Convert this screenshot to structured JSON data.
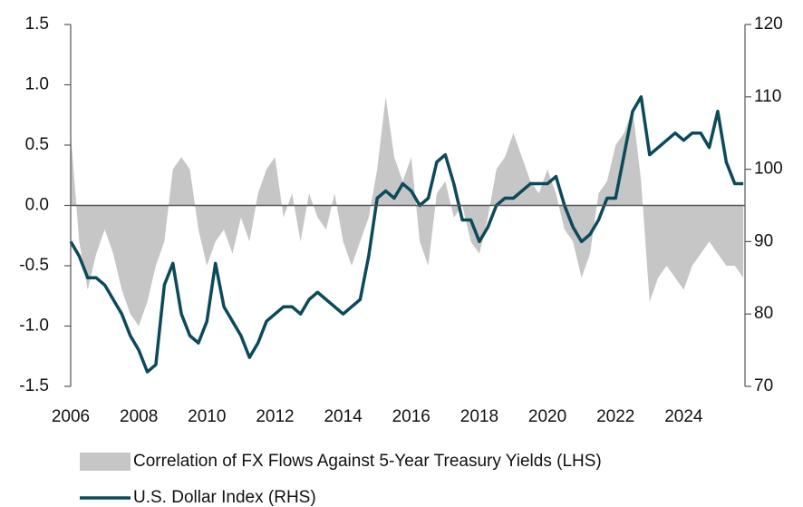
{
  "chart_data": {
    "type": "area_line",
    "x": [
      2006,
      2006.25,
      2006.5,
      2006.75,
      2007,
      2007.25,
      2007.5,
      2007.75,
      2008,
      2008.25,
      2008.5,
      2008.75,
      2009,
      2009.25,
      2009.5,
      2009.75,
      2010,
      2010.25,
      2010.5,
      2010.75,
      2011,
      2011.25,
      2011.5,
      2011.75,
      2012,
      2012.25,
      2012.5,
      2012.75,
      2013,
      2013.25,
      2013.5,
      2013.75,
      2014,
      2014.25,
      2014.5,
      2014.75,
      2015,
      2015.25,
      2015.5,
      2015.75,
      2016,
      2016.25,
      2016.5,
      2016.75,
      2017,
      2017.25,
      2017.5,
      2017.75,
      2018,
      2018.25,
      2018.5,
      2018.75,
      2019,
      2019.25,
      2019.5,
      2019.75,
      2020,
      2020.25,
      2020.5,
      2020.75,
      2021,
      2021.25,
      2021.5,
      2021.75,
      2022,
      2022.25,
      2022.5,
      2022.75,
      2023,
      2023.25,
      2023.5,
      2023.75,
      2024,
      2024.25,
      2024.5,
      2024.75,
      2025,
      2025.25,
      2025.5,
      2025.75
    ],
    "series": [
      {
        "name": "Correlation of FX Flows Against 5-Year Treasury Yields (LHS)",
        "color": "#c6c6c6",
        "kind": "area",
        "axis": "y",
        "values": [
          0.6,
          -0.3,
          -0.7,
          -0.4,
          -0.2,
          -0.4,
          -0.7,
          -0.9,
          -1.0,
          -0.8,
          -0.5,
          -0.3,
          0.3,
          0.4,
          0.3,
          -0.2,
          -0.5,
          -0.3,
          -0.2,
          -0.4,
          -0.1,
          -0.3,
          0.1,
          0.3,
          0.4,
          -0.1,
          0.1,
          -0.3,
          0.1,
          -0.1,
          -0.2,
          0.1,
          -0.3,
          -0.5,
          -0.3,
          -0.1,
          0.3,
          0.9,
          0.4,
          0.2,
          0.4,
          -0.3,
          -0.5,
          0.1,
          0.2,
          -0.1,
          0.0,
          -0.3,
          -0.4,
          -0.1,
          0.3,
          0.4,
          0.6,
          0.4,
          0.2,
          0.1,
          0.3,
          0.1,
          -0.2,
          -0.3,
          -0.6,
          -0.4,
          0.1,
          0.2,
          0.5,
          0.6,
          0.8,
          0.2,
          -0.8,
          -0.6,
          -0.5,
          -0.6,
          -0.7,
          -0.5,
          -0.4,
          -0.3,
          -0.4,
          -0.5,
          -0.5,
          -0.6
        ]
      },
      {
        "name": "U.S. Dollar Index (RHS)",
        "color": "#0b4a5a",
        "kind": "line",
        "axis": "y2",
        "values": [
          90,
          88,
          85,
          85,
          84,
          82,
          80,
          77,
          75,
          72,
          73,
          84,
          87,
          80,
          77,
          76,
          79,
          87,
          81,
          79,
          77,
          74,
          76,
          79,
          80,
          81,
          81,
          80,
          82,
          83,
          82,
          81,
          80,
          81,
          82,
          88,
          96,
          97,
          96,
          98,
          97,
          95,
          96,
          101,
          102,
          98,
          93,
          93,
          90,
          92,
          95,
          96,
          96,
          97,
          98,
          98,
          98,
          99,
          95,
          92,
          90,
          91,
          93,
          96,
          96,
          102,
          108,
          110,
          102,
          103,
          104,
          105,
          104,
          105,
          105,
          103,
          108,
          101,
          98,
          98
        ]
      }
    ],
    "xlim": [
      2006,
      2025.8
    ],
    "xticks": [
      2006,
      2008,
      2010,
      2012,
      2014,
      2016,
      2018,
      2020,
      2022,
      2024
    ],
    "ylim": [
      -1.5,
      1.5
    ],
    "yticks": [
      1.5,
      {
        "value": 1,
        "label": "1.0"
      },
      0.5,
      {
        "value": 0,
        "label": "0.0"
      },
      -0.5,
      {
        "value": -1,
        "label": "-1.0"
      },
      -1.5
    ],
    "y2lim": [
      70,
      120
    ],
    "y2ticks": [
      70,
      80,
      90,
      100,
      110,
      120
    ],
    "legend": "bottom"
  }
}
